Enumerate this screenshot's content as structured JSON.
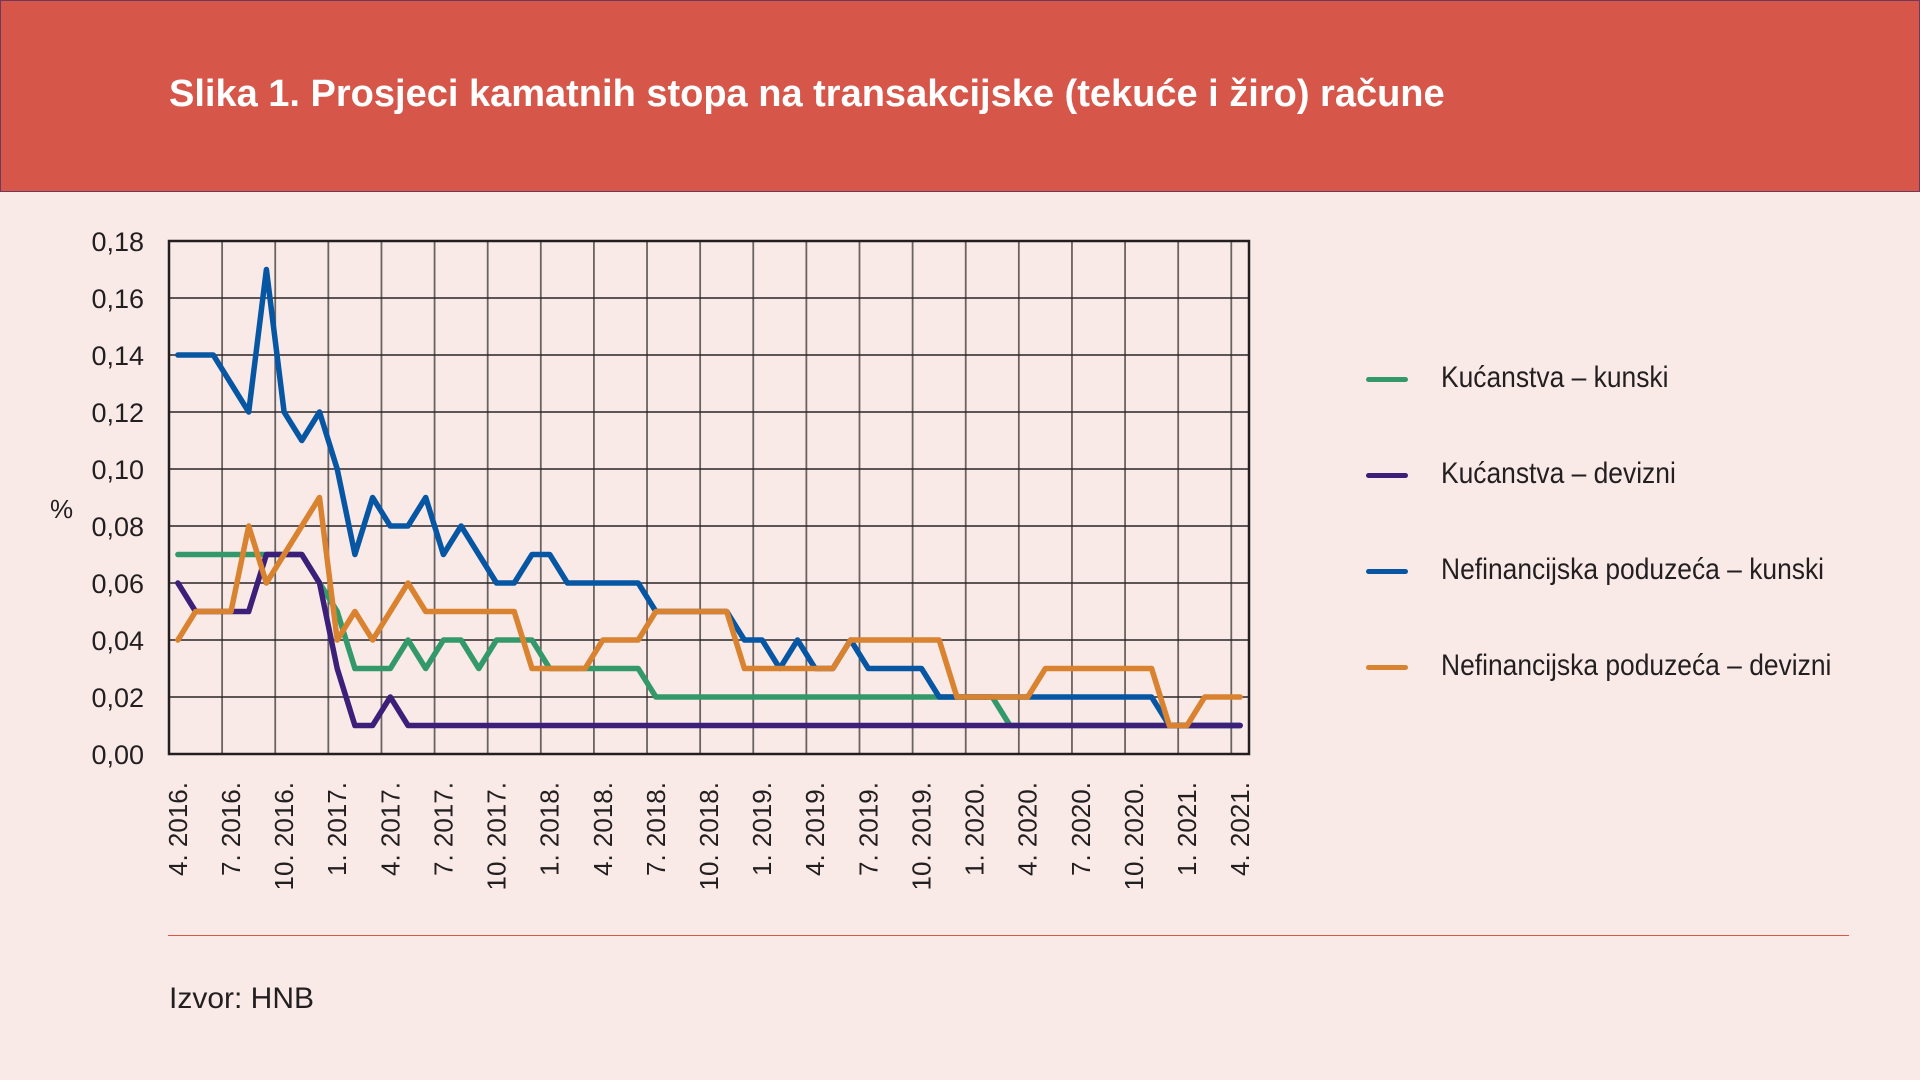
{
  "title": "Slika 1. Prosjeci kamatnih stopa na transakcijske (tekuće i žiro) račune",
  "source": "Izvor: HNB",
  "chart_data": {
    "type": "line",
    "title": "Slika 1. Prosjeci kamatnih stopa na transakcijske (tekuće i žiro) račune",
    "xlabel": "",
    "ylabel": "%",
    "ylim": [
      0,
      0.18
    ],
    "yticks": [
      "0,00",
      "0,02",
      "0,04",
      "0,06",
      "0,08",
      "0,10",
      "0,12",
      "0,14",
      "0,16",
      "0,18"
    ],
    "x_start": "4. 2016.",
    "x_end": "4. 2021.",
    "x_frequency": "monthly",
    "xtick_labels": [
      "4. 2016.",
      "7. 2016.",
      "10. 2016.",
      "1. 2017.",
      "4. 2017.",
      "7. 2017.",
      "10. 2017.",
      "1. 2018.",
      "4. 2018.",
      "7. 2018.",
      "10. 2018.",
      "1. 2019.",
      "4. 2019.",
      "7. 2019.",
      "10. 2019.",
      "1. 2020.",
      "4. 2020.",
      "7. 2020.",
      "10. 2020.",
      "1. 2021.",
      "4. 2021."
    ],
    "grid": true,
    "legend_position": "right",
    "series": [
      {
        "name": "Kućanstva – kunski",
        "color": "#34996a",
        "values": [
          0.07,
          0.07,
          0.07,
          0.07,
          0.07,
          0.07,
          0.07,
          0.07,
          0.06,
          0.05,
          0.03,
          0.03,
          0.03,
          0.04,
          0.03,
          0.04,
          0.04,
          0.03,
          0.04,
          0.04,
          0.04,
          0.03,
          0.03,
          0.03,
          0.03,
          0.03,
          0.03,
          0.02,
          0.02,
          0.02,
          0.02,
          0.02,
          0.02,
          0.02,
          0.02,
          0.02,
          0.02,
          0.02,
          0.02,
          0.02,
          0.02,
          0.02,
          0.02,
          0.02,
          0.02,
          0.02,
          0.02,
          0.01,
          0.01,
          0.01,
          0.01,
          0.01,
          0.01,
          0.01,
          0.01,
          0.01,
          0.01,
          0.01,
          0.01,
          0.01,
          0.01
        ]
      },
      {
        "name": "Kućanstva – devizni",
        "color": "#3b1f78",
        "values": [
          0.06,
          0.05,
          0.05,
          0.05,
          0.05,
          0.07,
          0.07,
          0.07,
          0.06,
          0.03,
          0.01,
          0.01,
          0.02,
          0.01,
          0.01,
          0.01,
          0.01,
          0.01,
          0.01,
          0.01,
          0.01,
          0.01,
          0.01,
          0.01,
          0.01,
          0.01,
          0.01,
          0.01,
          0.01,
          0.01,
          0.01,
          0.01,
          0.01,
          0.01,
          0.01,
          0.01,
          0.01,
          0.01,
          0.01,
          0.01,
          0.01,
          0.01,
          0.01,
          0.01,
          0.01,
          0.01,
          0.01,
          0.01,
          0.01,
          0.01,
          0.01,
          0.01,
          0.01,
          0.01,
          0.01,
          0.01,
          0.01,
          0.01,
          0.01,
          0.01,
          0.01
        ]
      },
      {
        "name": "Nefinancijska poduzeća – kunski",
        "color": "#0756a3",
        "values": [
          0.14,
          0.14,
          0.14,
          0.13,
          0.12,
          0.17,
          0.12,
          0.11,
          0.12,
          0.1,
          0.07,
          0.09,
          0.08,
          0.08,
          0.09,
          0.07,
          0.08,
          0.07,
          0.06,
          0.06,
          0.07,
          0.07,
          0.06,
          0.06,
          0.06,
          0.06,
          0.06,
          0.05,
          0.05,
          0.05,
          0.05,
          0.05,
          0.04,
          0.04,
          0.03,
          0.04,
          0.03,
          0.03,
          0.04,
          0.03,
          0.03,
          0.03,
          0.03,
          0.02,
          0.02,
          0.02,
          0.02,
          0.02,
          0.02,
          0.02,
          0.02,
          0.02,
          0.02,
          0.02,
          0.02,
          0.02,
          0.01,
          0.01,
          0.01,
          0.01,
          0.01
        ]
      },
      {
        "name": "Nefinancijska poduzeća – devizni",
        "color": "#d9822f",
        "values": [
          0.04,
          0.05,
          0.05,
          0.05,
          0.08,
          0.06,
          0.07,
          0.08,
          0.09,
          0.04,
          0.05,
          0.04,
          0.05,
          0.06,
          0.05,
          0.05,
          0.05,
          0.05,
          0.05,
          0.05,
          0.03,
          0.03,
          0.03,
          0.03,
          0.04,
          0.04,
          0.04,
          0.05,
          0.05,
          0.05,
          0.05,
          0.05,
          0.03,
          0.03,
          0.03,
          0.03,
          0.03,
          0.03,
          0.04,
          0.04,
          0.04,
          0.04,
          0.04,
          0.04,
          0.02,
          0.02,
          0.02,
          0.02,
          0.02,
          0.03,
          0.03,
          0.03,
          0.03,
          0.03,
          0.03,
          0.03,
          0.01,
          0.01,
          0.02,
          0.02,
          0.02
        ]
      }
    ]
  }
}
